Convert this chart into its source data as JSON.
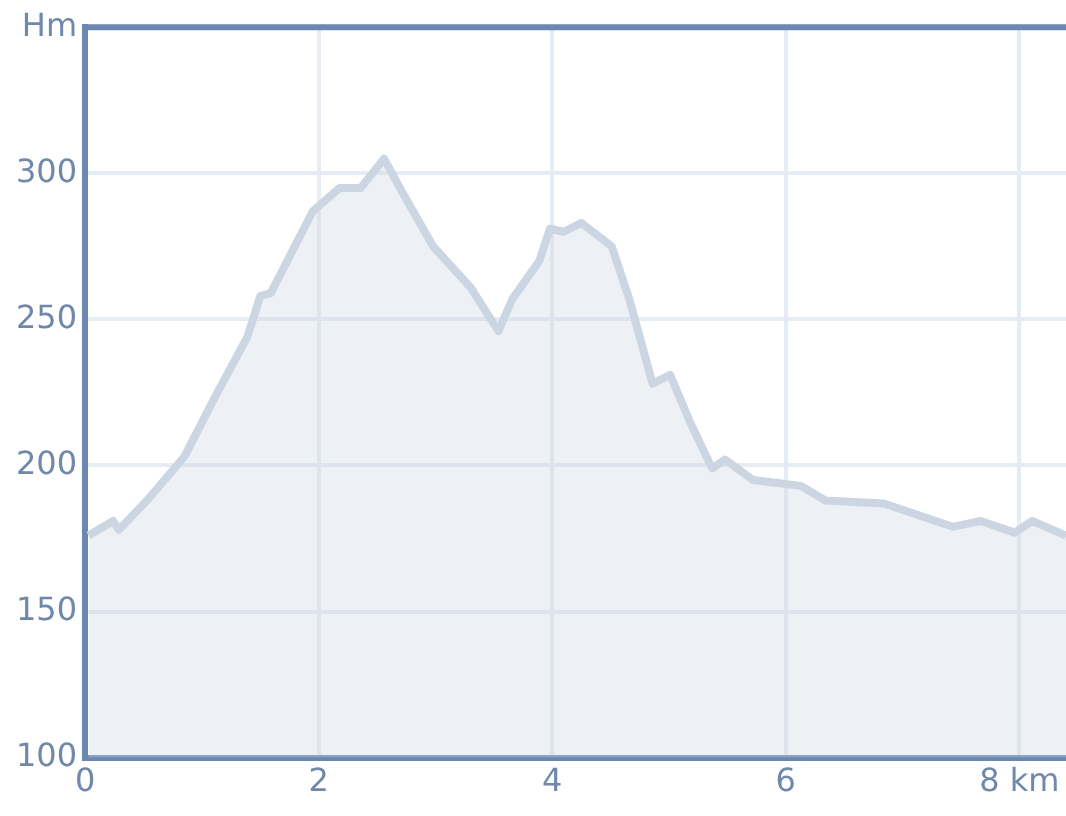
{
  "chart_data": {
    "type": "area",
    "x": [
      0.03,
      0.24,
      0.29,
      0.53,
      0.85,
      1.12,
      1.39,
      1.5,
      1.59,
      1.95,
      2.18,
      2.36,
      2.56,
      2.71,
      2.98,
      3.3,
      3.54,
      3.66,
      3.89,
      3.98,
      4.1,
      4.25,
      4.51,
      4.66,
      4.86,
      5.01,
      5.19,
      5.37,
      5.48,
      5.72,
      6.13,
      6.34,
      6.84,
      7.43,
      7.67,
      7.96,
      8.11,
      8.4
    ],
    "values": [
      176,
      181,
      178,
      188,
      203,
      224,
      244,
      258,
      259,
      287,
      295,
      295,
      305,
      294,
      275,
      261,
      246,
      257,
      270,
      281,
      280,
      283,
      275,
      257,
      228,
      231,
      214,
      199,
      202,
      195,
      193,
      188,
      187,
      179,
      181,
      177,
      181,
      176
    ],
    "color": "#ccd6e3",
    "xlim": [
      0,
      8.4
    ],
    "xticks": [
      0,
      2,
      4,
      6,
      {
        "value": 8,
        "label": "8 km"
      }
    ],
    "ylim": [
      100,
      350
    ],
    "yticks": [
      100,
      150,
      200,
      250,
      300,
      {
        "value": 350,
        "label": "Hm"
      }
    ],
    "grid": true
  }
}
